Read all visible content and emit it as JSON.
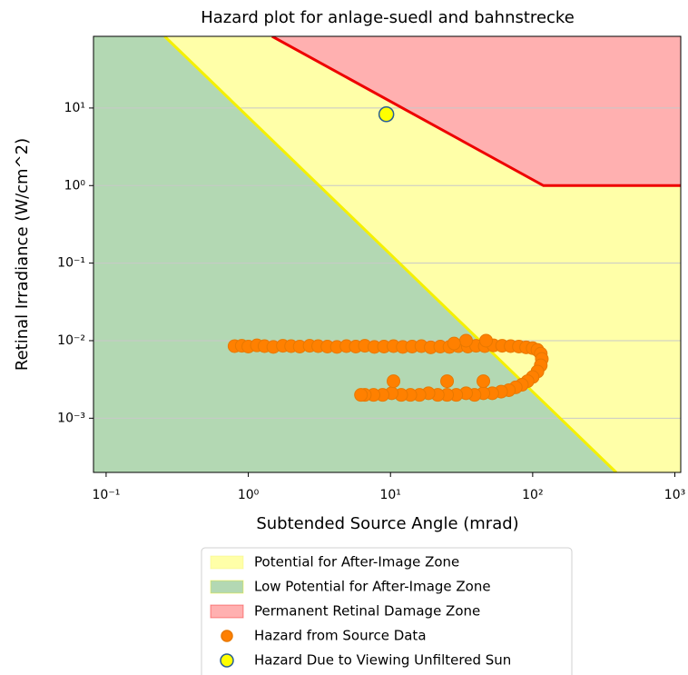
{
  "chart_data": {
    "type": "scatter",
    "title": "Hazard plot for anlage-suedl and bahnstrecke",
    "xlabel": "Subtended Source Angle (mrad)",
    "ylabel": "Retinal Irradiance (W/cm^2)",
    "xscale": "log",
    "yscale": "log",
    "xlim": [
      0.0815,
      1100
    ],
    "ylim": [
      0.0002,
      84
    ],
    "xticks": [
      {
        "value": 0.1,
        "label": "10⁻¹"
      },
      {
        "value": 1,
        "label": "10⁰"
      },
      {
        "value": 10,
        "label": "10¹"
      },
      {
        "value": 100,
        "label": "10²"
      },
      {
        "value": 1000,
        "label": "10³"
      }
    ],
    "yticks": [
      {
        "value": 0.001,
        "label": "10⁻³"
      },
      {
        "value": 0.01,
        "label": "10⁻²"
      },
      {
        "value": 0.1,
        "label": "10⁻¹"
      },
      {
        "value": 1,
        "label": "10⁰"
      },
      {
        "value": 10,
        "label": "10¹"
      }
    ],
    "grid": "y",
    "legend": "below",
    "zones": [
      {
        "name": "Potential for After-Image Zone",
        "color": "#ffffa8"
      },
      {
        "name": "Low Potential for After-Image Zone",
        "color": "#b3d8b3",
        "line_color": "#f5f000",
        "boundary": {
          "x": [
            0.258,
            387
          ],
          "y": [
            84,
            0.0002
          ]
        }
      },
      {
        "name": "Permanent Retinal Damage Zone",
        "color": "#ffb0b0",
        "line_color": "#ee0000",
        "boundary": {
          "x": [
            1.47,
            119,
            1100
          ],
          "y": [
            84,
            1,
            1
          ]
        }
      }
    ],
    "series": [
      {
        "name": "Hazard from Source Data",
        "color": "#ff8000",
        "edge_color": "#e87800",
        "x": [
          0.8,
          0.9,
          1.0,
          1.15,
          1.3,
          1.5,
          1.75,
          2.0,
          2.3,
          2.7,
          3.1,
          3.6,
          4.2,
          4.9,
          5.7,
          6.6,
          7.7,
          9.0,
          10.5,
          12.2,
          14.2,
          16.5,
          19.2,
          22.4,
          26,
          30,
          35,
          40,
          46,
          53,
          61,
          70,
          80,
          90,
          100,
          108,
          114,
          116,
          114,
          108,
          100,
          92,
          84,
          76,
          68,
          60,
          52,
          45,
          39,
          34,
          29,
          25,
          21.5,
          18.5,
          16,
          13.8,
          11.9,
          10.2,
          8.8,
          7.6,
          6.6,
          6.2,
          10.5,
          25,
          45,
          34,
          47,
          28
        ],
        "y": [
          0.0085,
          0.0086,
          0.0084,
          0.0087,
          0.0085,
          0.0083,
          0.0086,
          0.0085,
          0.0084,
          0.0086,
          0.0085,
          0.0084,
          0.0083,
          0.0085,
          0.0084,
          0.0086,
          0.0083,
          0.0084,
          0.0085,
          0.0083,
          0.0084,
          0.0085,
          0.0082,
          0.0084,
          0.0083,
          0.0085,
          0.0084,
          0.0086,
          0.0085,
          0.0087,
          0.0086,
          0.0085,
          0.0084,
          0.0082,
          0.008,
          0.0076,
          0.0068,
          0.0058,
          0.0048,
          0.004,
          0.0034,
          0.003,
          0.0027,
          0.0025,
          0.0023,
          0.0022,
          0.0021,
          0.0021,
          0.002,
          0.0021,
          0.002,
          0.002,
          0.002,
          0.0021,
          0.002,
          0.002,
          0.002,
          0.0021,
          0.002,
          0.002,
          0.002,
          0.002,
          0.003,
          0.003,
          0.003,
          0.01,
          0.01,
          0.0092
        ]
      },
      {
        "name": "Hazard Due to Viewing Unfiltered Sun",
        "color": "#ffff00",
        "edge_color": "#2a5f94",
        "x": [
          9.35
        ],
        "y": [
          8.3
        ]
      }
    ]
  }
}
